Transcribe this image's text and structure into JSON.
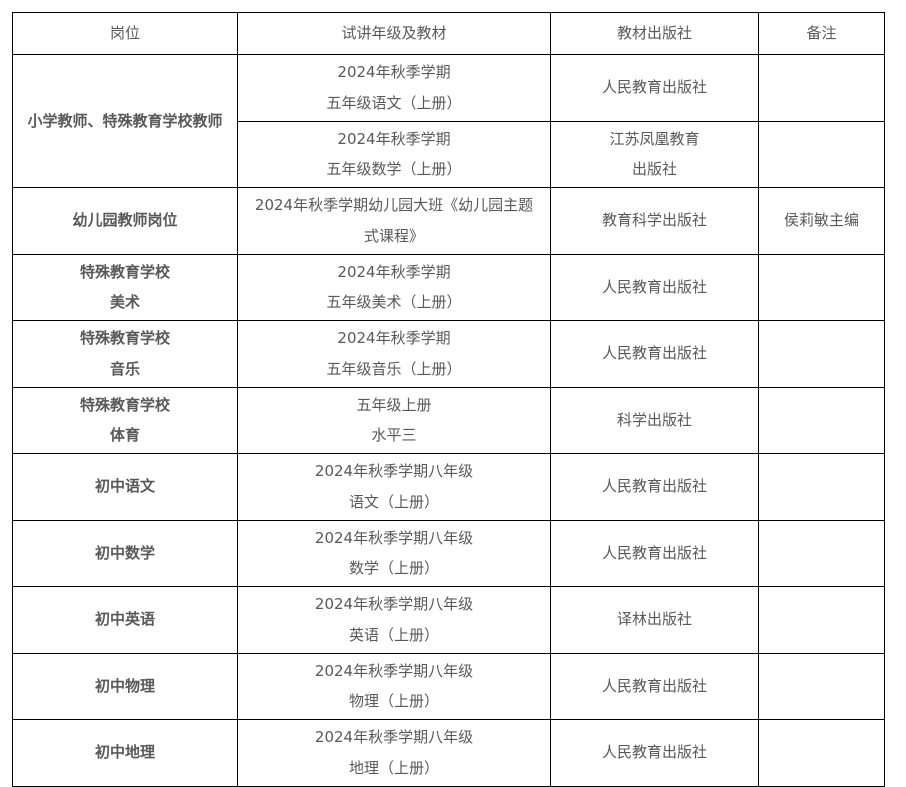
{
  "colors": {
    "text": "#595959",
    "border": "#000000",
    "background": "#ffffff"
  },
  "table": {
    "headers": {
      "position": "岗位",
      "material": "试讲年级及教材",
      "publisher": "教材出版社",
      "remark": "备注"
    },
    "rows": [
      {
        "position": "小学教师、特殊教育学校教师",
        "material": "2024年秋季学期\n五年级语文（上册）",
        "publisher": "人民教育出版社",
        "remark": ""
      },
      {
        "material": "2024年秋季学期\n五年级数学（上册）",
        "publisher": "江苏凤凰教育\n出版社",
        "remark": ""
      },
      {
        "position": "幼儿园教师岗位",
        "material": "2024年秋季学期幼儿园大班《幼儿园主题\n式课程》",
        "publisher": "教育科学出版社",
        "remark": "侯莉敏主编"
      },
      {
        "position": "特殊教育学校\n美术",
        "material": "2024年秋季学期\n五年级美术（上册）",
        "publisher": "人民教育出版社",
        "remark": ""
      },
      {
        "position": "特殊教育学校\n音乐",
        "material": "2024年秋季学期\n五年级音乐（上册）",
        "publisher": "人民教育出版社",
        "remark": ""
      },
      {
        "position": "特殊教育学校\n体育",
        "material": "五年级上册\n水平三",
        "publisher": "科学出版社",
        "remark": ""
      },
      {
        "position": "初中语文",
        "material": "2024年秋季学期八年级\n语文（上册）",
        "publisher": "人民教育出版社",
        "remark": ""
      },
      {
        "position": "初中数学",
        "material": "2024年秋季学期八年级\n数学（上册）",
        "publisher": "人民教育出版社",
        "remark": ""
      },
      {
        "position": "初中英语",
        "material": "2024年秋季学期八年级\n英语（上册）",
        "publisher": "译林出版社",
        "remark": ""
      },
      {
        "position": "初中物理",
        "material": "2024年秋季学期八年级\n物理（上册）",
        "publisher": "人民教育出版社",
        "remark": ""
      },
      {
        "position": "初中地理",
        "material": "2024年秋季学期八年级\n地理（上册）",
        "publisher": "人民教育出版社",
        "remark": ""
      }
    ]
  }
}
